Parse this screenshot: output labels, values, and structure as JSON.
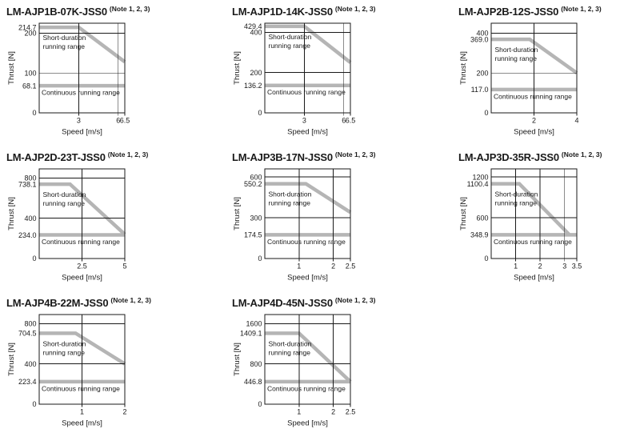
{
  "page": {
    "background": "#ffffff"
  },
  "style": {
    "range_line_color": "#b5b5b5",
    "axis_color": "#1a1a1a",
    "text_color": "#1a1a1a",
    "grid": "on",
    "legend": "none"
  },
  "chart_data": [
    {
      "type": "line",
      "title": "LM-AJP1B-07K-JSS0",
      "title_note": "(Note 1, 2, 3)",
      "xlabel": "Speed [m/s]",
      "ylabel": "Thrust [N]",
      "xlim": [
        0,
        6.5
      ],
      "ylim": [
        0,
        225
      ],
      "x_gridlines": [
        3,
        6
      ],
      "y_gridlines": [
        100,
        200
      ],
      "x_ticks": [
        {
          "v": 3,
          "label": "3"
        },
        {
          "v": 6,
          "label": "6"
        },
        {
          "v": 6.5,
          "label": "6.5"
        }
      ],
      "y_ticks": [
        {
          "v": 214.7,
          "label": "214.7"
        },
        {
          "v": 200,
          "label": "200"
        },
        {
          "v": 100,
          "label": "100"
        },
        {
          "v": 68.1,
          "label": "68.1"
        },
        {
          "v": 0,
          "label": "0"
        }
      ],
      "series": [
        {
          "name": "Short-duration running range",
          "points": [
            [
              0,
              214.7
            ],
            [
              3,
              214.7
            ],
            [
              6.5,
              128
            ]
          ]
        },
        {
          "name": "Continuous running range",
          "points": [
            [
              0,
              68.1
            ],
            [
              6.5,
              68.1
            ]
          ]
        }
      ],
      "annotations": {
        "short_label_lines": [
          "Short-duration",
          "running range"
        ],
        "continuous_label": "Continuous running range"
      }
    },
    {
      "type": "line",
      "title": "LM-AJP1D-14K-JSS0",
      "title_note": "(Note 1, 2, 3)",
      "xlabel": "Speed [m/s]",
      "ylabel": "Thrust [N]",
      "xlim": [
        0,
        6.5
      ],
      "ylim": [
        0,
        445
      ],
      "x_gridlines": [
        3,
        6
      ],
      "y_gridlines": [
        200,
        400
      ],
      "x_ticks": [
        {
          "v": 3,
          "label": "3"
        },
        {
          "v": 6,
          "label": "6"
        },
        {
          "v": 6.5,
          "label": "6.5"
        }
      ],
      "y_ticks": [
        {
          "v": 429.4,
          "label": "429.4"
        },
        {
          "v": 400,
          "label": "400"
        },
        {
          "v": 200,
          "label": "200"
        },
        {
          "v": 136.2,
          "label": "136.2"
        },
        {
          "v": 0,
          "label": "0"
        }
      ],
      "series": [
        {
          "name": "Short-duration running range",
          "points": [
            [
              0,
              429.4
            ],
            [
              3,
              429.4
            ],
            [
              6.5,
              250
            ]
          ]
        },
        {
          "name": "Continuous running range",
          "points": [
            [
              0,
              136.2
            ],
            [
              6.5,
              136.2
            ]
          ]
        }
      ],
      "annotations": {
        "short_label_lines": [
          "Short-duration",
          "running range"
        ],
        "continuous_label": "Continuous running range"
      }
    },
    {
      "type": "line",
      "title": "LM-AJP2B-12S-JSS0",
      "title_note": "(Note 1, 2, 3)",
      "xlabel": "Speed [m/s]",
      "ylabel": "Thrust [N]",
      "xlim": [
        0,
        4
      ],
      "ylim": [
        0,
        450
      ],
      "x_gridlines": [
        2
      ],
      "y_gridlines": [
        200,
        400
      ],
      "x_ticks": [
        {
          "v": 2,
          "label": "2"
        },
        {
          "v": 4,
          "label": "4"
        }
      ],
      "y_ticks": [
        {
          "v": 400,
          "label": "400"
        },
        {
          "v": 369.0,
          "label": "369.0"
        },
        {
          "v": 200,
          "label": "200"
        },
        {
          "v": 117.0,
          "label": "117.0"
        },
        {
          "v": 0,
          "label": "0"
        }
      ],
      "series": [
        {
          "name": "Short-duration running range",
          "points": [
            [
              0,
              369.0
            ],
            [
              1.8,
              369.0
            ],
            [
              4,
              200
            ]
          ]
        },
        {
          "name": "Continuous running range",
          "points": [
            [
              0,
              117.0
            ],
            [
              4,
              117.0
            ]
          ]
        }
      ],
      "annotations": {
        "short_label_lines": [
          "Short-duration",
          "running range"
        ],
        "continuous_label": "Continuous running range"
      }
    },
    {
      "type": "line",
      "title": "LM-AJP2D-23T-JSS0",
      "title_note": "(Note 1, 2, 3)",
      "xlabel": "Speed [m/s]",
      "ylabel": "Thrust [N]",
      "xlim": [
        0,
        5
      ],
      "ylim": [
        0,
        890
      ],
      "x_gridlines": [
        2.5
      ],
      "y_gridlines": [
        400,
        800
      ],
      "x_ticks": [
        {
          "v": 2.5,
          "label": "2.5"
        },
        {
          "v": 5,
          "label": "5"
        }
      ],
      "y_ticks": [
        {
          "v": 800,
          "label": "800"
        },
        {
          "v": 738.1,
          "label": "738.1"
        },
        {
          "v": 400,
          "label": "400"
        },
        {
          "v": 234.0,
          "label": "234.0"
        },
        {
          "v": 0,
          "label": "0"
        }
      ],
      "series": [
        {
          "name": "Short-duration running range",
          "points": [
            [
              0,
              738.1
            ],
            [
              1.8,
              738.1
            ],
            [
              5,
              240
            ]
          ]
        },
        {
          "name": "Continuous running range",
          "points": [
            [
              0,
              234.0
            ],
            [
              5,
              234.0
            ]
          ]
        }
      ],
      "annotations": {
        "short_label_lines": [
          "Short-duration",
          "running range"
        ],
        "continuous_label": "Continuous running range"
      }
    },
    {
      "type": "line",
      "title": "LM-AJP3B-17N-JSS0",
      "title_note": "(Note 1, 2, 3)",
      "xlabel": "Speed [m/s]",
      "ylabel": "Thrust [N]",
      "xlim": [
        0,
        2.5
      ],
      "ylim": [
        0,
        660
      ],
      "x_gridlines": [
        1,
        2
      ],
      "y_gridlines": [
        300,
        600
      ],
      "x_ticks": [
        {
          "v": 1,
          "label": "1"
        },
        {
          "v": 2,
          "label": "2"
        },
        {
          "v": 2.5,
          "label": "2.5"
        }
      ],
      "y_ticks": [
        {
          "v": 600,
          "label": "600"
        },
        {
          "v": 550.2,
          "label": "550.2"
        },
        {
          "v": 300,
          "label": "300"
        },
        {
          "v": 174.5,
          "label": "174.5"
        },
        {
          "v": 0,
          "label": "0"
        }
      ],
      "series": [
        {
          "name": "Short-duration running range",
          "points": [
            [
              0,
              550.2
            ],
            [
              1.2,
              550.2
            ],
            [
              2.5,
              340
            ]
          ]
        },
        {
          "name": "Continuous running range",
          "points": [
            [
              0,
              174.5
            ],
            [
              2.5,
              174.5
            ]
          ]
        }
      ],
      "annotations": {
        "short_label_lines": [
          "Short-duration",
          "running range"
        ],
        "continuous_label": "Continuous running range"
      }
    },
    {
      "type": "line",
      "title": "LM-AJP3D-35R-JSS0",
      "title_note": "(Note 1, 2, 3)",
      "xlabel": "Speed [m/s]",
      "ylabel": "Thrust [N]",
      "xlim": [
        0,
        3.5
      ],
      "ylim": [
        0,
        1320
      ],
      "x_gridlines": [
        1,
        2,
        3
      ],
      "y_gridlines": [
        600,
        1200
      ],
      "x_ticks": [
        {
          "v": 1,
          "label": "1"
        },
        {
          "v": 2,
          "label": "2"
        },
        {
          "v": 3,
          "label": "3"
        },
        {
          "v": 3.5,
          "label": "3.5"
        }
      ],
      "y_ticks": [
        {
          "v": 1200,
          "label": "1200"
        },
        {
          "v": 1100.4,
          "label": "1100.4"
        },
        {
          "v": 600,
          "label": "600"
        },
        {
          "v": 348.9,
          "label": "348.9"
        },
        {
          "v": 0,
          "label": "0"
        }
      ],
      "series": [
        {
          "name": "Short-duration running range",
          "points": [
            [
              0,
              1100.4
            ],
            [
              1.15,
              1100.4
            ],
            [
              3.2,
              348.9
            ]
          ]
        },
        {
          "name": "Continuous running range",
          "points": [
            [
              0,
              348.9
            ],
            [
              3.5,
              348.9
            ]
          ]
        }
      ],
      "annotations": {
        "short_label_lines": [
          "Short-duration",
          "running range"
        ],
        "continuous_label": "Continuous running range"
      }
    },
    {
      "type": "line",
      "title": "LM-AJP4B-22M-JSS0",
      "title_note": "(Note 1, 2, 3)",
      "xlabel": "Speed [m/s]",
      "ylabel": "Thrust [N]",
      "xlim": [
        0,
        2
      ],
      "ylim": [
        0,
        890
      ],
      "x_gridlines": [
        1
      ],
      "y_gridlines": [
        400,
        800
      ],
      "x_ticks": [
        {
          "v": 1,
          "label": "1"
        },
        {
          "v": 2,
          "label": "2"
        }
      ],
      "y_ticks": [
        {
          "v": 800,
          "label": "800"
        },
        {
          "v": 704.5,
          "label": "704.5"
        },
        {
          "v": 400,
          "label": "400"
        },
        {
          "v": 223.4,
          "label": "223.4"
        },
        {
          "v": 0,
          "label": "0"
        }
      ],
      "series": [
        {
          "name": "Short-duration running range",
          "points": [
            [
              0,
              704.5
            ],
            [
              0.85,
              704.5
            ],
            [
              2,
              400
            ]
          ]
        },
        {
          "name": "Continuous running range",
          "points": [
            [
              0,
              223.4
            ],
            [
              2,
              223.4
            ]
          ]
        }
      ],
      "annotations": {
        "short_label_lines": [
          "Short-duration",
          "running range"
        ],
        "continuous_label": "Continuous running range"
      }
    },
    {
      "type": "line",
      "title": "LM-AJP4D-45N-JSS0",
      "title_note": "(Note 1, 2, 3)",
      "xlabel": "Speed [m/s]",
      "ylabel": "Thrust [N]",
      "xlim": [
        0,
        2.5
      ],
      "ylim": [
        0,
        1780
      ],
      "x_gridlines": [
        1,
        2
      ],
      "y_gridlines": [
        800,
        1600
      ],
      "x_ticks": [
        {
          "v": 1,
          "label": "1"
        },
        {
          "v": 2,
          "label": "2"
        },
        {
          "v": 2.5,
          "label": "2.5"
        }
      ],
      "y_ticks": [
        {
          "v": 1600,
          "label": "1600"
        },
        {
          "v": 1409.1,
          "label": "1409.1"
        },
        {
          "v": 800,
          "label": "800"
        },
        {
          "v": 446.8,
          "label": "446.8"
        },
        {
          "v": 0,
          "label": "0"
        }
      ],
      "series": [
        {
          "name": "Short-duration running range",
          "points": [
            [
              0,
              1409.1
            ],
            [
              1,
              1409.1
            ],
            [
              2.5,
              446.8
            ]
          ]
        },
        {
          "name": "Continuous running range",
          "points": [
            [
              0,
              446.8
            ],
            [
              2.5,
              446.8
            ]
          ]
        }
      ],
      "annotations": {
        "short_label_lines": [
          "Short-duration",
          "running range"
        ],
        "continuous_label": "Continuous running range"
      }
    }
  ]
}
